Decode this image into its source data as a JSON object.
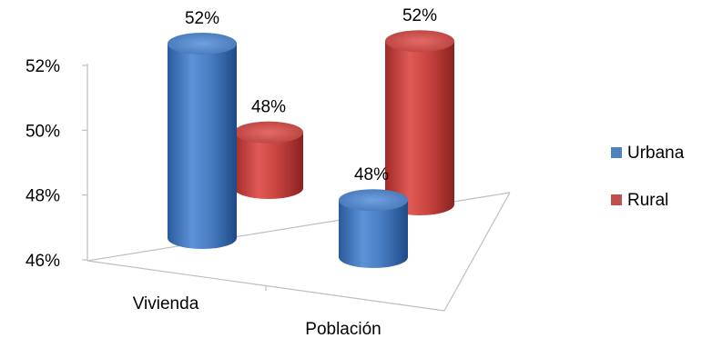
{
  "chart_data": {
    "type": "bar",
    "variant": "3d-cylinder",
    "title": "",
    "xlabel": "",
    "ylabel": "",
    "categories": [
      "Vivienda",
      "Población"
    ],
    "series": [
      {
        "name": "Urbana",
        "values": [
          52,
          48
        ],
        "labels": [
          "52%",
          "48%"
        ],
        "color": "#4f81bd"
      },
      {
        "name": "Rural",
        "values": [
          48,
          52
        ],
        "labels": [
          "48%",
          "52%"
        ],
        "color": "#c0504d"
      }
    ],
    "ylim": [
      46,
      52
    ],
    "yticks": [
      46,
      48,
      50,
      52
    ],
    "ytick_labels": [
      "46%",
      "48%",
      "50%",
      "52%"
    ],
    "grid": false,
    "legend": "right"
  }
}
